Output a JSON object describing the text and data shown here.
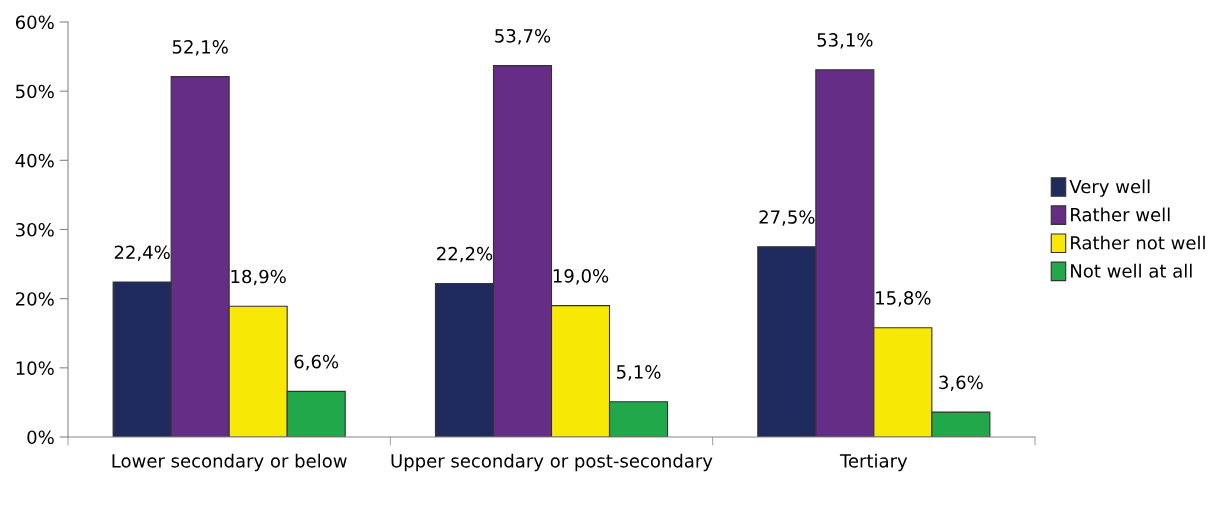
{
  "chart_data": {
    "type": "bar",
    "categories": [
      "Lower secondary or below",
      "Upper secondary or post-secondary",
      "Tertiary"
    ],
    "series": [
      {
        "name": "Very well",
        "color": "#1f2b5c",
        "values": [
          22.4,
          22.2,
          27.5
        ],
        "value_labels": [
          "22,4%",
          "22,2%",
          "27,5%"
        ]
      },
      {
        "name": "Rather well",
        "color": "#652d86",
        "values": [
          52.1,
          53.7,
          53.1
        ],
        "value_labels": [
          "52,1%",
          "53,7%",
          "53,1%"
        ]
      },
      {
        "name": "Rather not well",
        "color": "#f7e805",
        "values": [
          18.9,
          19.0,
          15.8
        ],
        "value_labels": [
          "18,9%",
          "19,0%",
          "15,8%"
        ]
      },
      {
        "name": "Not well at all",
        "color": "#21a84a",
        "values": [
          6.6,
          5.1,
          3.6
        ],
        "value_labels": [
          "6,6%",
          "5,1%",
          "3,6%"
        ]
      }
    ],
    "ylim": [
      0,
      60
    ],
    "yticks": [
      {
        "value": 0,
        "label": "0%"
      },
      {
        "value": 10,
        "label": "10%"
      },
      {
        "value": 20,
        "label": "20%"
      },
      {
        "value": 30,
        "label": "30%"
      },
      {
        "value": 40,
        "label": "40%"
      },
      {
        "value": 50,
        "label": "50%"
      },
      {
        "value": 60,
        "label": "60%"
      }
    ],
    "grid": false,
    "legend": "right"
  }
}
